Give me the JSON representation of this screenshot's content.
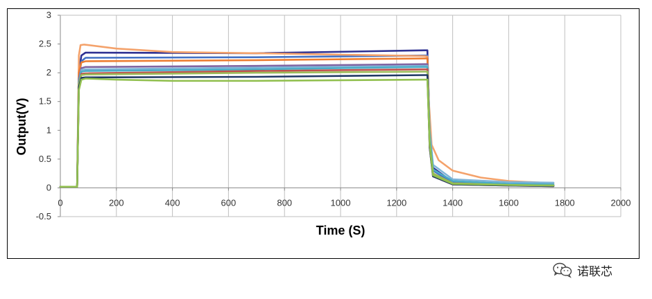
{
  "chart_data": {
    "type": "line",
    "xlabel": "Time (S)",
    "ylabel": "Output(V)",
    "xlim": [
      0,
      2000
    ],
    "ylim": [
      -0.5,
      3
    ],
    "xticks": [
      "0",
      "200",
      "400",
      "600",
      "800",
      "1000",
      "1200",
      "1400",
      "1600",
      "1800",
      "2000"
    ],
    "yticks": [
      "-0.5",
      "0",
      "0.5",
      "1",
      "1.5",
      "2",
      "2.5",
      "3"
    ],
    "grid": "vertical",
    "series": [
      {
        "color": "#2e3192",
        "values": [
          [
            0,
            0.02
          ],
          [
            60,
            0.02
          ],
          [
            66,
            2.0
          ],
          [
            75,
            2.3
          ],
          [
            90,
            2.35
          ],
          [
            700,
            2.34
          ],
          [
            1300,
            2.39
          ],
          [
            1310,
            2.39
          ],
          [
            1318,
            1.0
          ],
          [
            1330,
            0.35
          ],
          [
            1400,
            0.1
          ],
          [
            1600,
            0.05
          ],
          [
            1760,
            0.04
          ]
        ]
      },
      {
        "color": "#4472c4",
        "values": [
          [
            0,
            0.02
          ],
          [
            60,
            0.02
          ],
          [
            66,
            1.9
          ],
          [
            75,
            2.2
          ],
          [
            90,
            2.26
          ],
          [
            700,
            2.27
          ],
          [
            1300,
            2.3
          ],
          [
            1310,
            2.3
          ],
          [
            1318,
            0.9
          ],
          [
            1330,
            0.3
          ],
          [
            1400,
            0.09
          ],
          [
            1600,
            0.05
          ],
          [
            1760,
            0.04
          ]
        ]
      },
      {
        "color": "#f4a26b",
        "values": [
          [
            0,
            0.02
          ],
          [
            60,
            0.02
          ],
          [
            66,
            2.3
          ],
          [
            72,
            2.48
          ],
          [
            85,
            2.49
          ],
          [
            200,
            2.42
          ],
          [
            400,
            2.36
          ],
          [
            700,
            2.34
          ],
          [
            1300,
            2.29
          ],
          [
            1310,
            2.28
          ],
          [
            1315,
            1.5
          ],
          [
            1325,
            0.75
          ],
          [
            1350,
            0.48
          ],
          [
            1400,
            0.3
          ],
          [
            1500,
            0.18
          ],
          [
            1600,
            0.12
          ],
          [
            1760,
            0.08
          ]
        ]
      },
      {
        "color": "#ed7d31",
        "values": [
          [
            0,
            0.02
          ],
          [
            60,
            0.02
          ],
          [
            66,
            2.0
          ],
          [
            75,
            2.18
          ],
          [
            90,
            2.2
          ],
          [
            700,
            2.22
          ],
          [
            1300,
            2.25
          ],
          [
            1310,
            2.25
          ],
          [
            1318,
            0.8
          ],
          [
            1330,
            0.25
          ],
          [
            1400,
            0.08
          ],
          [
            1600,
            0.05
          ],
          [
            1760,
            0.04
          ]
        ]
      },
      {
        "color": "#8064a2",
        "values": [
          [
            0,
            0.02
          ],
          [
            60,
            0.02
          ],
          [
            66,
            1.9
          ],
          [
            75,
            2.08
          ],
          [
            90,
            2.1
          ],
          [
            700,
            2.12
          ],
          [
            1300,
            2.15
          ],
          [
            1310,
            2.15
          ],
          [
            1318,
            0.8
          ],
          [
            1330,
            0.25
          ],
          [
            1400,
            0.08
          ],
          [
            1600,
            0.05
          ],
          [
            1760,
            0.04
          ]
        ]
      },
      {
        "color": "#7fb4d8",
        "values": [
          [
            0,
            0.02
          ],
          [
            60,
            0.02
          ],
          [
            66,
            1.85
          ],
          [
            75,
            2.05
          ],
          [
            90,
            2.06
          ],
          [
            700,
            2.09
          ],
          [
            1300,
            2.12
          ],
          [
            1310,
            2.12
          ],
          [
            1318,
            1.0
          ],
          [
            1330,
            0.4
          ],
          [
            1400,
            0.15
          ],
          [
            1600,
            0.1
          ],
          [
            1760,
            0.09
          ]
        ]
      },
      {
        "color": "#4bacc6",
        "values": [
          [
            0,
            0.02
          ],
          [
            60,
            0.02
          ],
          [
            66,
            1.85
          ],
          [
            75,
            2.02
          ],
          [
            90,
            2.03
          ],
          [
            700,
            2.06
          ],
          [
            1300,
            2.1
          ],
          [
            1310,
            2.1
          ],
          [
            1318,
            0.9
          ],
          [
            1330,
            0.32
          ],
          [
            1400,
            0.12
          ],
          [
            1600,
            0.07
          ],
          [
            1760,
            0.06
          ]
        ]
      },
      {
        "color": "#c0504d",
        "values": [
          [
            0,
            0.02
          ],
          [
            60,
            0.02
          ],
          [
            66,
            1.8
          ],
          [
            75,
            1.98
          ],
          [
            90,
            1.99
          ],
          [
            700,
            2.03
          ],
          [
            1300,
            2.06
          ],
          [
            1310,
            2.06
          ],
          [
            1318,
            0.7
          ],
          [
            1330,
            0.2
          ],
          [
            1400,
            0.06
          ],
          [
            1600,
            0.04
          ],
          [
            1760,
            0.03
          ]
        ]
      },
      {
        "color": "#9bbb59",
        "values": [
          [
            0,
            0.02
          ],
          [
            60,
            0.02
          ],
          [
            66,
            1.8
          ],
          [
            75,
            1.96
          ],
          [
            90,
            1.97
          ],
          [
            700,
            2.0
          ],
          [
            1300,
            2.02
          ],
          [
            1310,
            2.02
          ],
          [
            1318,
            0.8
          ],
          [
            1330,
            0.25
          ],
          [
            1400,
            0.08
          ],
          [
            1600,
            0.05
          ],
          [
            1760,
            0.04
          ]
        ]
      },
      {
        "color": "#1f3864",
        "values": [
          [
            0,
            0.02
          ],
          [
            60,
            0.02
          ],
          [
            66,
            1.75
          ],
          [
            75,
            1.91
          ],
          [
            90,
            1.92
          ],
          [
            700,
            1.93
          ],
          [
            1300,
            1.96
          ],
          [
            1310,
            1.96
          ],
          [
            1318,
            0.7
          ],
          [
            1330,
            0.2
          ],
          [
            1400,
            0.06
          ],
          [
            1600,
            0.04
          ],
          [
            1760,
            0.03
          ]
        ]
      },
      {
        "color": "#92c050",
        "values": [
          [
            0,
            0.02
          ],
          [
            60,
            0.02
          ],
          [
            66,
            1.7
          ],
          [
            75,
            1.88
          ],
          [
            90,
            1.9
          ],
          [
            200,
            1.88
          ],
          [
            400,
            1.86
          ],
          [
            700,
            1.86
          ],
          [
            1300,
            1.88
          ],
          [
            1310,
            1.88
          ],
          [
            1318,
            0.75
          ],
          [
            1330,
            0.22
          ],
          [
            1400,
            0.07
          ],
          [
            1600,
            0.05
          ],
          [
            1760,
            0.04
          ]
        ]
      }
    ]
  },
  "watermark": {
    "icon": "wechat-icon",
    "text": "诺联芯"
  }
}
